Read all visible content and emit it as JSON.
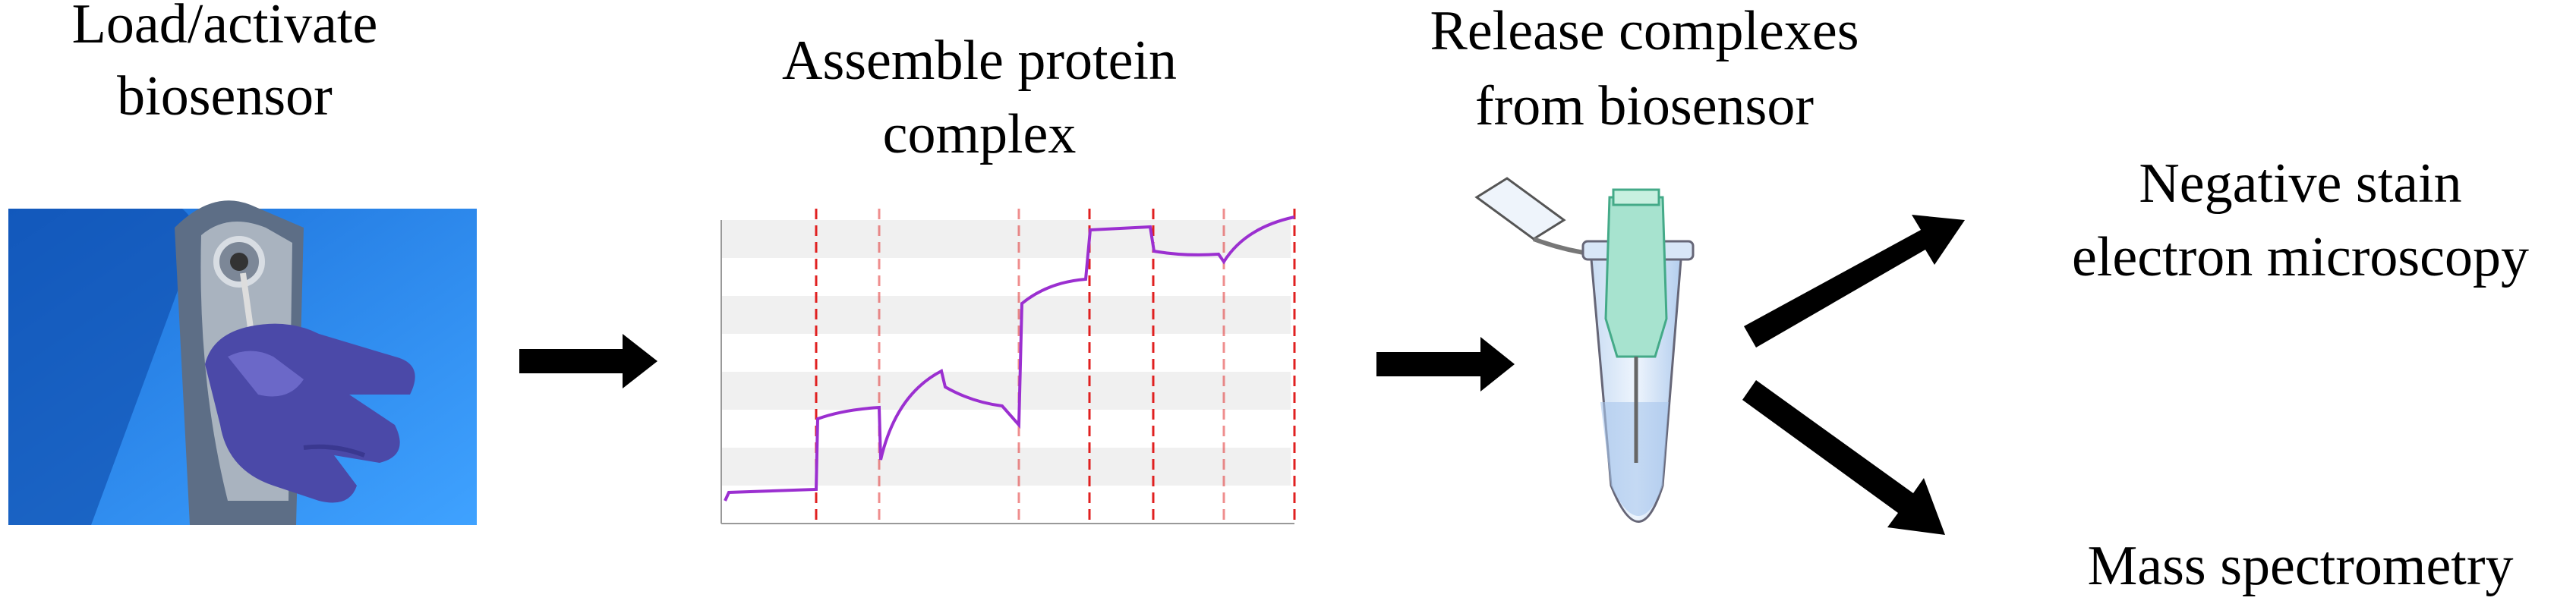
{
  "steps": [
    {
      "lines": [
        "Load/activate",
        "biosensor"
      ]
    },
    {
      "lines": [
        "Assemble protein",
        "complex"
      ]
    },
    {
      "lines": [
        "Release complexes",
        "from  biosensor"
      ]
    }
  ],
  "outputs": [
    {
      "lines": [
        "Negative  stain",
        "electron microscopy"
      ]
    },
    {
      "lines": [
        "Mass spectrometry"
      ]
    }
  ]
}
